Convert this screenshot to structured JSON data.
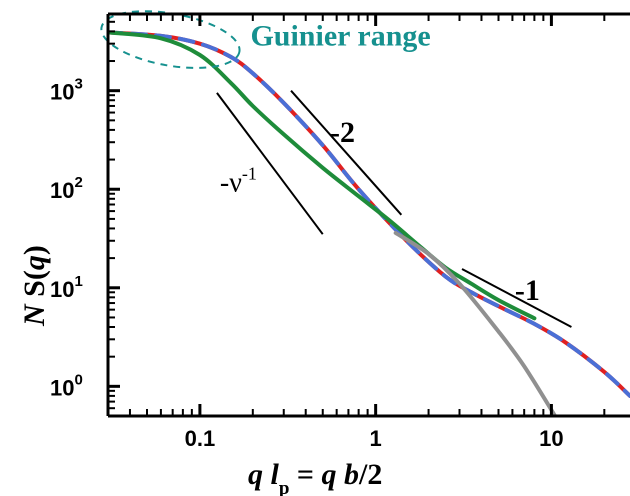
{
  "chart_data": {
    "type": "line",
    "xscale": "log",
    "yscale": "log",
    "xlim": [
      0.03,
      28
    ],
    "ylim": [
      0.5,
      6000
    ],
    "x_ticks": [
      {
        "value": 0.1,
        "label": "0.1"
      },
      {
        "value": 1,
        "label": "1"
      },
      {
        "value": 10,
        "label": "10"
      }
    ],
    "y_ticks": [
      {
        "value": 1,
        "label": "10",
        "exp": "0"
      },
      {
        "value": 10,
        "label": "10",
        "exp": "1"
      },
      {
        "value": 100,
        "label": "10",
        "exp": "2"
      },
      {
        "value": 1000,
        "label": "10",
        "exp": "3"
      }
    ],
    "xlabel": {
      "q1": "q",
      "l": "l",
      "sub": "p",
      "eq": " = ",
      "q2": "q",
      "b": " b",
      "tail": "/2"
    },
    "ylabel": {
      "N": "N",
      "S": " S(",
      "q": "q",
      "close": ")"
    },
    "series": [
      {
        "color": "#e02020",
        "style": "solid",
        "x": [
          0.03,
          0.06,
          0.1,
          0.15,
          0.2,
          0.3,
          0.5,
          0.8,
          1.5,
          2.5,
          3.5,
          5,
          8,
          12,
          20,
          28
        ],
        "y": [
          3900,
          3600,
          3000,
          2200,
          1500,
          750,
          280,
          100,
          30,
          13,
          9,
          6.5,
          4.3,
          2.8,
          1.4,
          0.8
        ]
      },
      {
        "color": "#4a6fd6",
        "style": "dashed",
        "x": [
          0.03,
          0.06,
          0.1,
          0.15,
          0.2,
          0.3,
          0.5,
          0.8,
          1.5,
          2.5,
          3.5,
          5,
          8,
          12,
          20,
          28
        ],
        "y": [
          3900,
          3600,
          3000,
          2200,
          1500,
          750,
          280,
          100,
          30,
          13,
          9,
          6.5,
          4.3,
          2.8,
          1.4,
          0.8
        ]
      },
      {
        "color": "#1e8c3a",
        "style": "solid",
        "x": [
          0.03,
          0.06,
          0.1,
          0.15,
          0.2,
          0.3,
          0.5,
          0.8,
          1.2,
          1.8,
          2.5,
          3.5,
          5,
          8
        ],
        "y": [
          3900,
          3400,
          2300,
          1200,
          700,
          360,
          165,
          85,
          48,
          26,
          16,
          11,
          7.5,
          4.9
        ]
      },
      {
        "color": "#909090",
        "style": "solid",
        "x": [
          1.3,
          2,
          3,
          5,
          7,
          10.5
        ],
        "y": [
          36,
          22,
          11,
          3.6,
          1.6,
          0.5
        ]
      }
    ],
    "guide_lines": [
      {
        "x": [
          0.125,
          0.5
        ],
        "y": [
          950,
          35
        ]
      },
      {
        "x": [
          0.33,
          1.4
        ],
        "y": [
          1000,
          55
        ]
      },
      {
        "x": [
          3.1,
          13
        ],
        "y": [
          15.5,
          4
        ]
      }
    ],
    "annotations": [
      {
        "text": "-2",
        "x": 0.55,
        "y": 300
      },
      {
        "text": "-1",
        "x": 6.2,
        "y": 7.5
      }
    ],
    "nu_annotation": {
      "minus": "-",
      "nu": "ν",
      "exp": "-1",
      "x": 0.13,
      "y": 95
    },
    "guinier": {
      "label": "Guinier range",
      "color": "#16918f",
      "ellipse_cx": 0.068,
      "ellipse_cy": 3300
    }
  },
  "colors": {
    "axes": "#000000",
    "background": "#ffffff"
  }
}
